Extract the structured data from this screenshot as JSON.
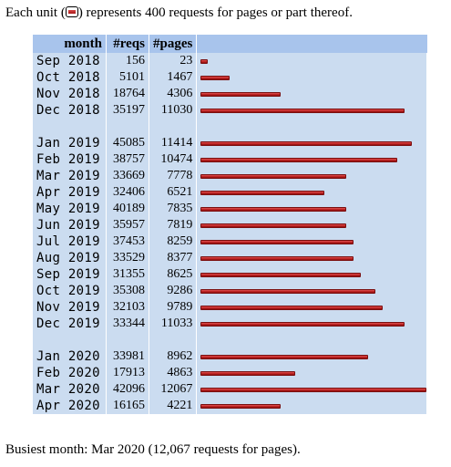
{
  "intro": {
    "prefix": "Each unit (",
    "suffix": ") represents 400 requests for pages or part thereof."
  },
  "table": {
    "headers": [
      "month",
      "#reqs",
      "#pages"
    ],
    "unit": 400,
    "groups": [
      [
        {
          "month": "Sep 2018",
          "reqs": "156",
          "pages": "23"
        },
        {
          "month": "Oct 2018",
          "reqs": "5101",
          "pages": "1467"
        },
        {
          "month": "Nov 2018",
          "reqs": "18764",
          "pages": "4306"
        },
        {
          "month": "Dec 2018",
          "reqs": "35197",
          "pages": "11030"
        }
      ],
      [
        {
          "month": "Jan 2019",
          "reqs": "45085",
          "pages": "11414"
        },
        {
          "month": "Feb 2019",
          "reqs": "38757",
          "pages": "10474"
        },
        {
          "month": "Mar 2019",
          "reqs": "33669",
          "pages": "7778"
        },
        {
          "month": "Apr 2019",
          "reqs": "32406",
          "pages": "6521"
        },
        {
          "month": "May 2019",
          "reqs": "40189",
          "pages": "7835"
        },
        {
          "month": "Jun 2019",
          "reqs": "35957",
          "pages": "7819"
        },
        {
          "month": "Jul 2019",
          "reqs": "37453",
          "pages": "8259"
        },
        {
          "month": "Aug 2019",
          "reqs": "33529",
          "pages": "8377"
        },
        {
          "month": "Sep 2019",
          "reqs": "31355",
          "pages": "8625"
        },
        {
          "month": "Oct 2019",
          "reqs": "35308",
          "pages": "9286"
        },
        {
          "month": "Nov 2019",
          "reqs": "32103",
          "pages": "9789"
        },
        {
          "month": "Dec 2019",
          "reqs": "33344",
          "pages": "11033"
        }
      ],
      [
        {
          "month": "Jan 2020",
          "reqs": "33981",
          "pages": "8962"
        },
        {
          "month": "Feb 2020",
          "reqs": "17913",
          "pages": "4863"
        },
        {
          "month": "Mar 2020",
          "reqs": "42096",
          "pages": "12067"
        },
        {
          "month": "Apr 2020",
          "reqs": "16165",
          "pages": "4221"
        }
      ]
    ]
  },
  "summary": "Busiest month: Mar 2020 (12,067 requests for pages).",
  "colors": {
    "header_bg": "#a8c4ec",
    "table_bg": "#cbdcf0",
    "bar": "#c02222"
  }
}
